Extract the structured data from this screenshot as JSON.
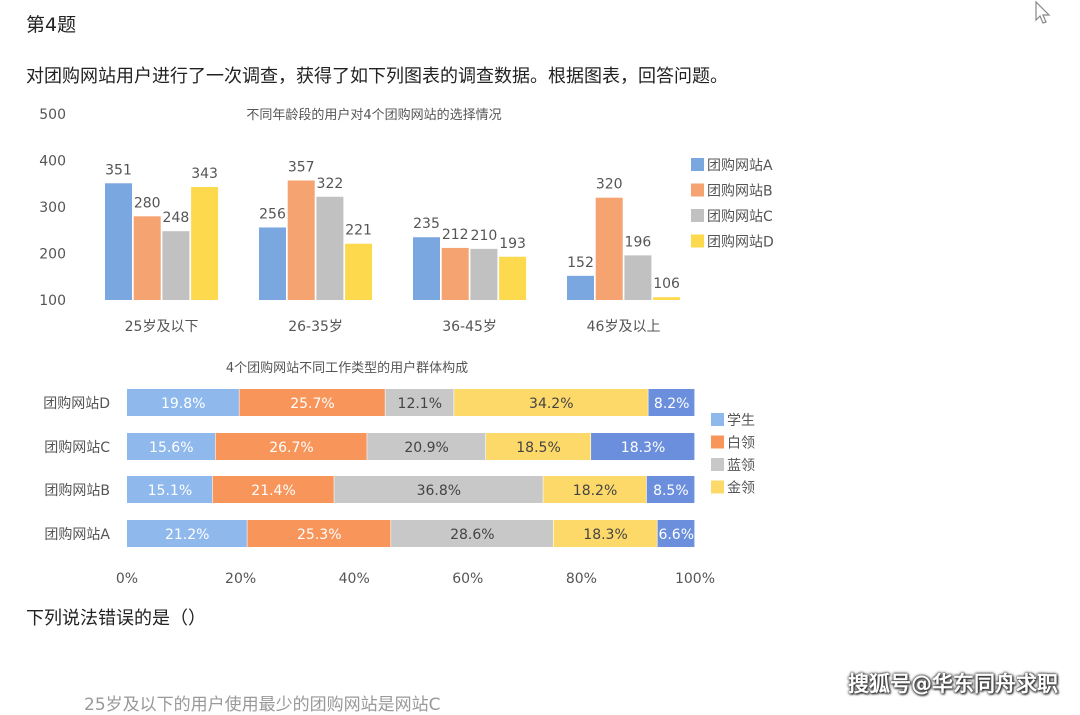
{
  "question": {
    "number_label": "第4题",
    "intro": "对团购网站用户进行了一次调查，获得了如下列图表的调查数据。根据图表，回答问题。",
    "prompt": "下列说法错误的是（）",
    "option_a": "25岁及以下的用户使用最少的团购网站是网站C"
  },
  "watermark": "搜狐号@华东同舟求职",
  "cursor": "arrow-cursor-icon",
  "chart_data": [
    {
      "type": "bar",
      "title": "不同年龄段的用户对4个团购网站的选择情况",
      "categories": [
        "25岁及以下",
        "26-35岁",
        "36-45岁",
        "46岁及以上"
      ],
      "series": [
        {
          "name": "团购网站A",
          "values": [
            351,
            256,
            235,
            152
          ],
          "color": "#7ba7e1"
        },
        {
          "name": "团购网站B",
          "values": [
            280,
            357,
            212,
            320
          ],
          "color": "#f5a370"
        },
        {
          "name": "团购网站C",
          "values": [
            248,
            322,
            210,
            196
          ],
          "color": "#c1c1c1"
        },
        {
          "name": "团购网站D",
          "values": [
            343,
            221,
            193,
            106
          ],
          "color": "#fdd94e"
        }
      ],
      "yticks": [
        "100",
        "200",
        "300",
        "400",
        "500"
      ],
      "ylim": [
        100,
        500
      ],
      "legend": "right",
      "grid": false
    },
    {
      "type": "bar",
      "orientation": "horizontal-stacked",
      "title": "4个团购网站不同工作类型的用户群体构成",
      "categories": [
        "团购网站D",
        "团购网站C",
        "团购网站B",
        "团购网站A"
      ],
      "series": [
        {
          "name": "学生",
          "values": [
            19.8,
            15.6,
            15.1,
            21.2
          ],
          "labels": [
            "19.8%",
            "15.6%",
            "15.1%",
            "21.2%"
          ],
          "color": "#8fb9ec"
        },
        {
          "name": "白领",
          "values": [
            25.7,
            26.7,
            21.4,
            25.3
          ],
          "labels": [
            "25.7%",
            "26.7%",
            "21.4%",
            "25.3%"
          ],
          "color": "#f8955a"
        },
        {
          "name": "蓝领",
          "values": [
            12.1,
            20.9,
            36.8,
            28.6
          ],
          "labels": [
            "12.1%",
            "20.9%",
            "36.8%",
            "28.6%"
          ],
          "color": "#c8c8c8"
        },
        {
          "name": "金领",
          "values": [
            34.2,
            18.5,
            18.2,
            18.3
          ],
          "labels": [
            "34.2%",
            "18.5%",
            "18.2%",
            "18.3%"
          ],
          "color": "#fdd96a"
        },
        {
          "name": "",
          "values": [
            8.2,
            18.3,
            8.5,
            6.6
          ],
          "labels": [
            "8.2%",
            "18.3%",
            "8.5%",
            "6.6%"
          ],
          "color": "#6b8fdc"
        }
      ],
      "xticks": [
        "0%",
        "20%",
        "40%",
        "60%",
        "80%",
        "100%"
      ],
      "xlim": [
        0,
        100
      ],
      "legend": "right",
      "grid": false
    }
  ]
}
